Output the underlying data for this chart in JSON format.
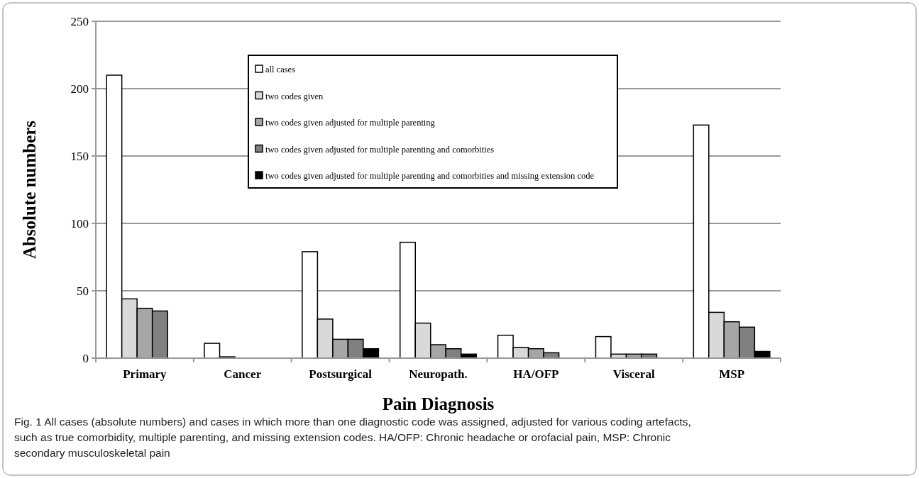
{
  "chart_data": {
    "type": "bar",
    "xlabel": "Pain Diagnosis",
    "ylabel": "Absolute numbers",
    "categories": [
      "Primary",
      "Cancer",
      "Postsurgical",
      "Neuropath.",
      "HA/OFP",
      "Visceral",
      "MSP"
    ],
    "series": [
      {
        "name": "all cases",
        "color": "#ffffff",
        "values": [
          210,
          11,
          79,
          86,
          17,
          16,
          173
        ]
      },
      {
        "name": "two codes given",
        "color": "#d9d9d9",
        "values": [
          44,
          1,
          29,
          26,
          8,
          3,
          34
        ]
      },
      {
        "name": "two codes given adjusted for multiple parenting",
        "color": "#a6a6a6",
        "values": [
          37,
          0,
          14,
          10,
          7,
          3,
          27
        ]
      },
      {
        "name": "two codes given adjusted for multiple parenting and comorbities",
        "color": "#808080",
        "values": [
          35,
          0,
          14,
          7,
          4,
          3,
          23
        ]
      },
      {
        "name": "two codes given adjusted for multiple parenting and comorbities and missing extension code",
        "color": "#000000",
        "values": [
          0,
          0,
          7,
          3,
          0,
          0,
          5
        ]
      }
    ],
    "ylim": [
      0,
      250
    ],
    "yticks": [
      0,
      50,
      100,
      150,
      200,
      250
    ],
    "grid": "y",
    "legend": "top",
    "annotations": [
      "Fig. 1 All cases (absolute numbers) and cases in which more than one diagnostic code was assigned, adjusted for various coding artefacts, such as true comorbidity, multiple parenting, and missing extension codes. HA/OFP: Chronic headache or orofacial pain, MSP: Chronic secondary musculoskeletal pain"
    ]
  }
}
